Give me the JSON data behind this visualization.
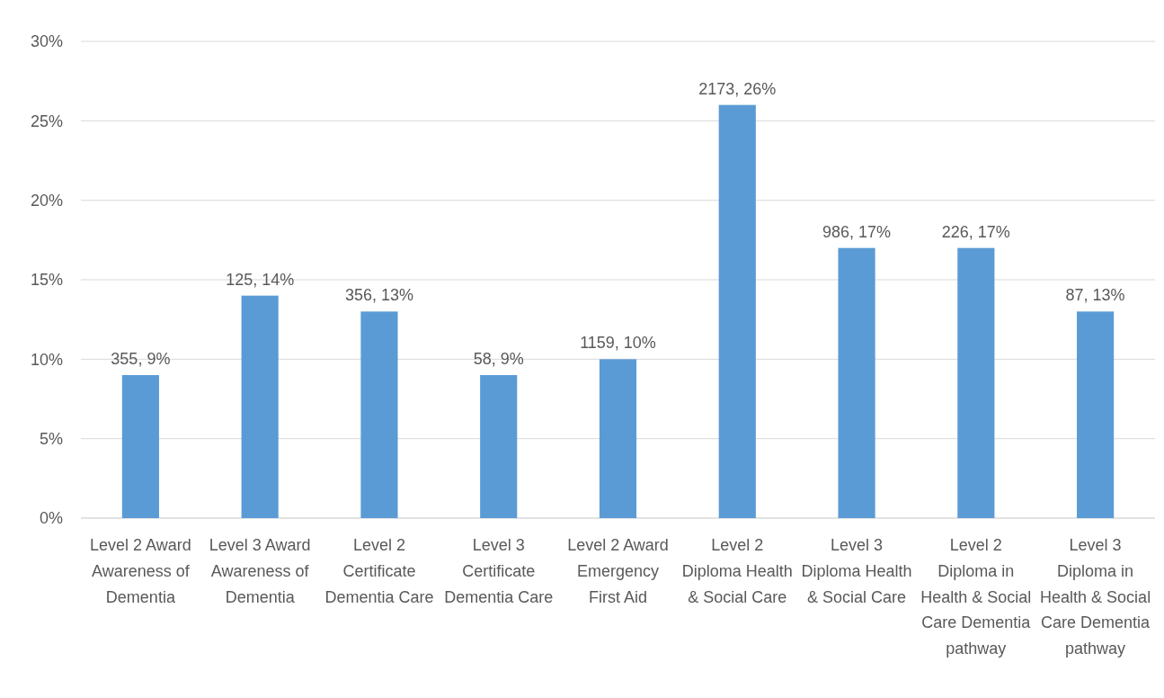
{
  "chart_data": {
    "type": "bar",
    "categories": [
      "Level 2 Award Awareness of Dementia",
      "Level 3 Award Awareness of Dementia",
      "Level 2 Certificate Dementia Care",
      "Level 3 Certificate Dementia Care",
      "Level 2 Award Emergency First Aid",
      "Level 2 Diploma Health & Social Care",
      "Level 3 Diploma Health & Social Care",
      "Level 2 Diploma in Health & Social Care Dementia pathway",
      "Level 3 Diploma in Health & Social Care Dementia pathway"
    ],
    "values": [
      9,
      14,
      13,
      9,
      10,
      26,
      17,
      17,
      13
    ],
    "value_labels": [
      "355, 9%",
      "125, 14%",
      "356, 13%",
      "58, 9%",
      "1159, 10%",
      "2173, 26%",
      "986, 17%",
      "226, 17%",
      "87, 13%"
    ],
    "color": "#5b9bd5",
    "ylim": [
      0,
      30
    ],
    "yticks": [
      {
        "value": 0,
        "label": "0%"
      },
      {
        "value": 5,
        "label": "5%"
      },
      {
        "value": 10,
        "label": "10%"
      },
      {
        "value": 15,
        "label": "15%"
      },
      {
        "value": 20,
        "label": "20%"
      },
      {
        "value": 25,
        "label": "25%"
      },
      {
        "value": 30,
        "label": "30%"
      }
    ],
    "grid": "y"
  }
}
